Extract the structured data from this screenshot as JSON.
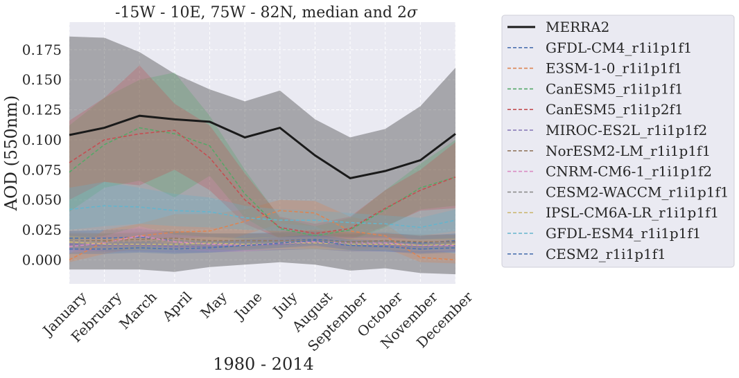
{
  "chart_data": {
    "type": "line",
    "title": "-15W - 10E, 75W - 82N, median and 2",
    "title_symbol": "σ",
    "xlabel": "1980 - 2014",
    "ylabel": "AOD (550nm)",
    "ylim": [
      -0.02,
      0.198
    ],
    "yticks": [
      "0.000",
      "0.025",
      "0.050",
      "0.075",
      "0.100",
      "0.125",
      "0.150",
      "0.175"
    ],
    "ytick_values": [
      0,
      0.025,
      0.05,
      0.075,
      0.1,
      0.125,
      0.15,
      0.175
    ],
    "categories": [
      "January",
      "February",
      "March",
      "April",
      "May",
      "June",
      "July",
      "August",
      "September",
      "October",
      "November",
      "December"
    ],
    "grid": true,
    "legend_position": "outside-right",
    "series": [
      {
        "name": "MERRA2",
        "color": "#1a1a1a",
        "style": "solid",
        "values": [
          0.104,
          0.11,
          0.12,
          0.117,
          0.115,
          0.102,
          0.11,
          0.087,
          0.068,
          0.074,
          0.083,
          0.105
        ],
        "upper": [
          0.186,
          0.185,
          0.173,
          0.155,
          0.142,
          0.132,
          0.141,
          0.117,
          0.102,
          0.109,
          0.128,
          0.16
        ],
        "lower": [
          -0.008,
          -0.008,
          -0.008,
          -0.01,
          -0.006,
          -0.004,
          -0.002,
          -0.004,
          -0.009,
          -0.007,
          -0.011,
          -0.012
        ]
      },
      {
        "name": "GFDL-CM4_r1i1p1f1",
        "color": "#4c72b0",
        "style": "dashed",
        "values": [
          0.018,
          0.018,
          0.019,
          0.016,
          0.015,
          0.015,
          0.016,
          0.017,
          0.015,
          0.016,
          0.014,
          0.016
        ],
        "upper": [
          0.024,
          0.025,
          0.026,
          0.023,
          0.022,
          0.022,
          0.023,
          0.024,
          0.022,
          0.023,
          0.02,
          0.022
        ],
        "lower": [
          0.011,
          0.011,
          0.012,
          0.01,
          0.009,
          0.009,
          0.01,
          0.011,
          0.009,
          0.01,
          0.008,
          0.01
        ]
      },
      {
        "name": "E3SM-1-0_r1i1p1f1",
        "color": "#dd8452",
        "style": "dashed",
        "values": [
          0.0,
          0.015,
          0.02,
          0.023,
          0.024,
          0.032,
          0.041,
          0.039,
          0.024,
          0.02,
          0.002,
          0.0
        ],
        "upper": [
          0.005,
          0.025,
          0.03,
          0.038,
          0.038,
          0.042,
          0.05,
          0.049,
          0.036,
          0.03,
          0.01,
          0.005
        ],
        "lower": [
          -0.002,
          0.005,
          0.01,
          0.012,
          0.012,
          0.021,
          0.03,
          0.028,
          0.014,
          0.01,
          -0.002,
          -0.003
        ]
      },
      {
        "name": "CanESM5_r1i1p1f1",
        "color": "#55a868",
        "style": "dashed",
        "values": [
          0.073,
          0.096,
          0.11,
          0.105,
          0.095,
          0.055,
          0.026,
          0.02,
          0.025,
          0.042,
          0.06,
          0.069
        ],
        "upper": [
          0.112,
          0.135,
          0.15,
          0.156,
          0.12,
          0.075,
          0.035,
          0.028,
          0.035,
          0.058,
          0.08,
          0.1
        ],
        "lower": [
          0.04,
          0.06,
          0.066,
          0.052,
          0.07,
          0.035,
          0.018,
          0.013,
          0.016,
          0.027,
          0.042,
          0.045
        ]
      },
      {
        "name": "CanESM5_r1i1p2f1",
        "color": "#c44e52",
        "style": "dashed",
        "values": [
          0.081,
          0.1,
          0.105,
          0.108,
          0.085,
          0.05,
          0.027,
          0.022,
          0.026,
          0.043,
          0.058,
          0.069
        ],
        "upper": [
          0.116,
          0.135,
          0.162,
          0.13,
          0.112,
          0.072,
          0.036,
          0.03,
          0.036,
          0.058,
          0.075,
          0.098
        ],
        "lower": [
          0.05,
          0.065,
          0.062,
          0.075,
          0.058,
          0.03,
          0.018,
          0.014,
          0.017,
          0.028,
          0.041,
          0.043
        ]
      },
      {
        "name": "MIROC-ES2L_r1i1p1f2",
        "color": "#8172b3",
        "style": "dashed",
        "values": [
          0.013,
          0.012,
          0.012,
          0.011,
          0.011,
          0.012,
          0.013,
          0.014,
          0.012,
          0.012,
          0.011,
          0.012
        ],
        "upper": [
          0.018,
          0.017,
          0.017,
          0.016,
          0.016,
          0.017,
          0.018,
          0.019,
          0.017,
          0.017,
          0.016,
          0.017
        ],
        "lower": [
          0.008,
          0.007,
          0.007,
          0.006,
          0.006,
          0.007,
          0.008,
          0.009,
          0.007,
          0.007,
          0.006,
          0.007
        ]
      },
      {
        "name": "NorESM2-LM_r1i1p1f1",
        "color": "#937860",
        "style": "dashed",
        "values": [
          0.016,
          0.016,
          0.017,
          0.018,
          0.016,
          0.016,
          0.016,
          0.016,
          0.015,
          0.016,
          0.015,
          0.015
        ],
        "upper": [
          0.022,
          0.022,
          0.023,
          0.024,
          0.022,
          0.022,
          0.022,
          0.022,
          0.021,
          0.022,
          0.021,
          0.021
        ],
        "lower": [
          0.01,
          0.01,
          0.011,
          0.012,
          0.01,
          0.01,
          0.01,
          0.01,
          0.009,
          0.01,
          0.009,
          0.009
        ]
      },
      {
        "name": "CNRM-CM6-1_r1i1p1f2",
        "color": "#da8bc3",
        "style": "dashed",
        "values": [
          0.011,
          0.014,
          0.02,
          0.015,
          0.013,
          0.012,
          0.014,
          0.015,
          0.014,
          0.014,
          0.012,
          0.012
        ],
        "upper": [
          0.016,
          0.02,
          0.028,
          0.021,
          0.019,
          0.017,
          0.019,
          0.02,
          0.019,
          0.019,
          0.017,
          0.017
        ],
        "lower": [
          0.006,
          0.008,
          0.012,
          0.009,
          0.007,
          0.007,
          0.009,
          0.01,
          0.009,
          0.009,
          0.007,
          0.007
        ]
      },
      {
        "name": "CESM2-WACCM_r1i1p1f1",
        "color": "#8c8c8c",
        "style": "dashed",
        "values": [
          0.016,
          0.015,
          0.015,
          0.016,
          0.015,
          0.015,
          0.015,
          0.016,
          0.014,
          0.015,
          0.013,
          0.014
        ],
        "upper": [
          0.024,
          0.022,
          0.022,
          0.024,
          0.022,
          0.022,
          0.022,
          0.023,
          0.021,
          0.022,
          0.02,
          0.021
        ],
        "lower": [
          0.009,
          0.008,
          0.008,
          0.009,
          0.008,
          0.008,
          0.008,
          0.009,
          0.007,
          0.008,
          0.006,
          0.007
        ]
      },
      {
        "name": "IPSL-CM6A-LR_r1i1p1f1",
        "color": "#ccb974",
        "style": "dashed",
        "values": [
          0.015,
          0.013,
          0.013,
          0.013,
          0.014,
          0.013,
          0.014,
          0.014,
          0.013,
          0.013,
          0.012,
          0.013
        ],
        "upper": [
          0.02,
          0.018,
          0.018,
          0.018,
          0.019,
          0.018,
          0.019,
          0.019,
          0.018,
          0.018,
          0.017,
          0.018
        ],
        "lower": [
          0.01,
          0.008,
          0.008,
          0.008,
          0.009,
          0.008,
          0.009,
          0.009,
          0.008,
          0.008,
          0.007,
          0.008
        ]
      },
      {
        "name": "GFDL-ESM4_r1i1p1f1",
        "color": "#64b5cd",
        "style": "dashed",
        "values": [
          0.042,
          0.045,
          0.044,
          0.041,
          0.04,
          0.035,
          0.033,
          0.033,
          0.031,
          0.03,
          0.027,
          0.033
        ],
        "upper": [
          0.06,
          0.065,
          0.06,
          0.055,
          0.052,
          0.045,
          0.042,
          0.041,
          0.039,
          0.037,
          0.035,
          0.042
        ],
        "lower": [
          0.025,
          0.028,
          0.03,
          0.028,
          0.027,
          0.025,
          0.024,
          0.025,
          0.023,
          0.022,
          0.02,
          0.024
        ]
      },
      {
        "name": "CESM2_r1i1p1f1",
        "color": "#4c72b0",
        "style": "dashed",
        "values": [
          0.009,
          0.009,
          0.01,
          0.009,
          0.01,
          0.012,
          0.014,
          0.016,
          0.012,
          0.011,
          0.009,
          0.01
        ],
        "upper": [
          0.014,
          0.014,
          0.015,
          0.014,
          0.015,
          0.017,
          0.019,
          0.021,
          0.017,
          0.016,
          0.014,
          0.015
        ],
        "lower": [
          0.005,
          0.005,
          0.006,
          0.005,
          0.006,
          0.008,
          0.01,
          0.012,
          0.008,
          0.007,
          0.005,
          0.006
        ]
      }
    ]
  }
}
